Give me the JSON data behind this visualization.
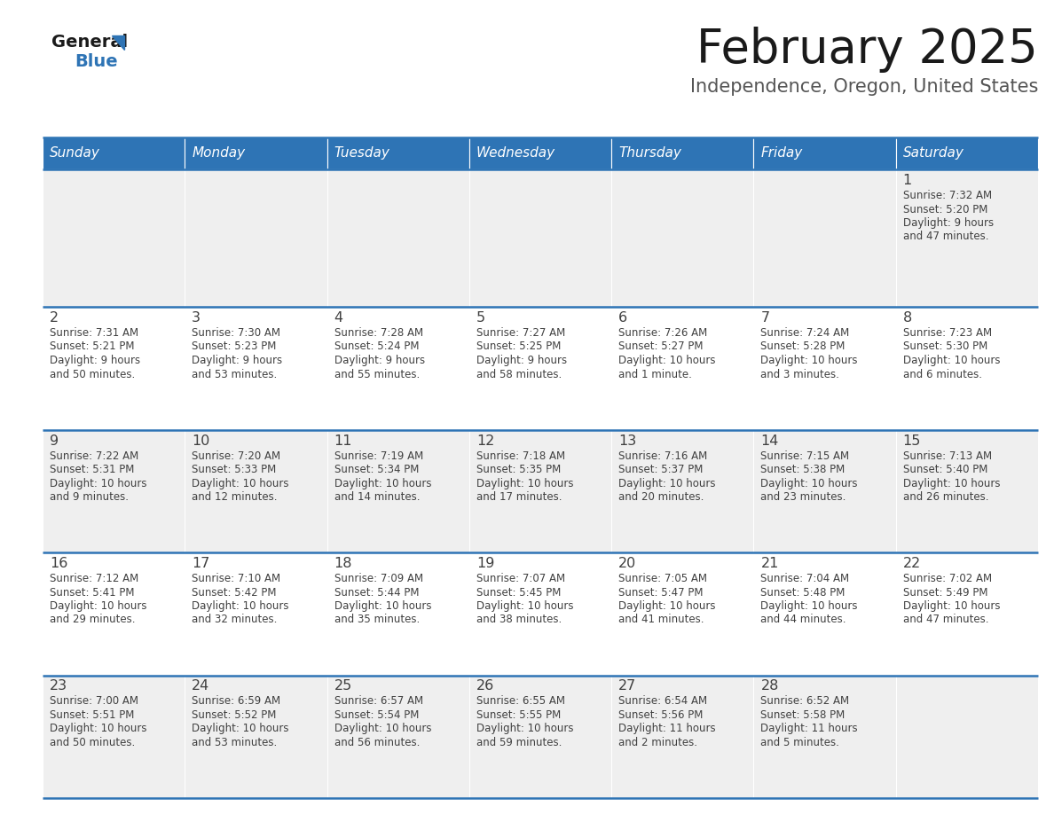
{
  "title": "February 2025",
  "subtitle": "Independence, Oregon, United States",
  "header_color": "#2e74b5",
  "header_text_color": "#ffffff",
  "cell_bg_odd": "#efefef",
  "cell_bg_even": "#ffffff",
  "border_color": "#2e74b5",
  "title_color": "#1a1a1a",
  "subtitle_color": "#555555",
  "day_number_color": "#404040",
  "cell_text_color": "#404040",
  "days_of_week": [
    "Sunday",
    "Monday",
    "Tuesday",
    "Wednesday",
    "Thursday",
    "Friday",
    "Saturday"
  ],
  "weeks": [
    [
      {
        "day": "",
        "sunrise": "",
        "sunset": "",
        "daylight": ""
      },
      {
        "day": "",
        "sunrise": "",
        "sunset": "",
        "daylight": ""
      },
      {
        "day": "",
        "sunrise": "",
        "sunset": "",
        "daylight": ""
      },
      {
        "day": "",
        "sunrise": "",
        "sunset": "",
        "daylight": ""
      },
      {
        "day": "",
        "sunrise": "",
        "sunset": "",
        "daylight": ""
      },
      {
        "day": "",
        "sunrise": "",
        "sunset": "",
        "daylight": ""
      },
      {
        "day": "1",
        "sunrise": "7:32 AM",
        "sunset": "5:20 PM",
        "daylight": "9 hours\nand 47 minutes."
      }
    ],
    [
      {
        "day": "2",
        "sunrise": "7:31 AM",
        "sunset": "5:21 PM",
        "daylight": "9 hours\nand 50 minutes."
      },
      {
        "day": "3",
        "sunrise": "7:30 AM",
        "sunset": "5:23 PM",
        "daylight": "9 hours\nand 53 minutes."
      },
      {
        "day": "4",
        "sunrise": "7:28 AM",
        "sunset": "5:24 PM",
        "daylight": "9 hours\nand 55 minutes."
      },
      {
        "day": "5",
        "sunrise": "7:27 AM",
        "sunset": "5:25 PM",
        "daylight": "9 hours\nand 58 minutes."
      },
      {
        "day": "6",
        "sunrise": "7:26 AM",
        "sunset": "5:27 PM",
        "daylight": "10 hours\nand 1 minute."
      },
      {
        "day": "7",
        "sunrise": "7:24 AM",
        "sunset": "5:28 PM",
        "daylight": "10 hours\nand 3 minutes."
      },
      {
        "day": "8",
        "sunrise": "7:23 AM",
        "sunset": "5:30 PM",
        "daylight": "10 hours\nand 6 minutes."
      }
    ],
    [
      {
        "day": "9",
        "sunrise": "7:22 AM",
        "sunset": "5:31 PM",
        "daylight": "10 hours\nand 9 minutes."
      },
      {
        "day": "10",
        "sunrise": "7:20 AM",
        "sunset": "5:33 PM",
        "daylight": "10 hours\nand 12 minutes."
      },
      {
        "day": "11",
        "sunrise": "7:19 AM",
        "sunset": "5:34 PM",
        "daylight": "10 hours\nand 14 minutes."
      },
      {
        "day": "12",
        "sunrise": "7:18 AM",
        "sunset": "5:35 PM",
        "daylight": "10 hours\nand 17 minutes."
      },
      {
        "day": "13",
        "sunrise": "7:16 AM",
        "sunset": "5:37 PM",
        "daylight": "10 hours\nand 20 minutes."
      },
      {
        "day": "14",
        "sunrise": "7:15 AM",
        "sunset": "5:38 PM",
        "daylight": "10 hours\nand 23 minutes."
      },
      {
        "day": "15",
        "sunrise": "7:13 AM",
        "sunset": "5:40 PM",
        "daylight": "10 hours\nand 26 minutes."
      }
    ],
    [
      {
        "day": "16",
        "sunrise": "7:12 AM",
        "sunset": "5:41 PM",
        "daylight": "10 hours\nand 29 minutes."
      },
      {
        "day": "17",
        "sunrise": "7:10 AM",
        "sunset": "5:42 PM",
        "daylight": "10 hours\nand 32 minutes."
      },
      {
        "day": "18",
        "sunrise": "7:09 AM",
        "sunset": "5:44 PM",
        "daylight": "10 hours\nand 35 minutes."
      },
      {
        "day": "19",
        "sunrise": "7:07 AM",
        "sunset": "5:45 PM",
        "daylight": "10 hours\nand 38 minutes."
      },
      {
        "day": "20",
        "sunrise": "7:05 AM",
        "sunset": "5:47 PM",
        "daylight": "10 hours\nand 41 minutes."
      },
      {
        "day": "21",
        "sunrise": "7:04 AM",
        "sunset": "5:48 PM",
        "daylight": "10 hours\nand 44 minutes."
      },
      {
        "day": "22",
        "sunrise": "7:02 AM",
        "sunset": "5:49 PM",
        "daylight": "10 hours\nand 47 minutes."
      }
    ],
    [
      {
        "day": "23",
        "sunrise": "7:00 AM",
        "sunset": "5:51 PM",
        "daylight": "10 hours\nand 50 minutes."
      },
      {
        "day": "24",
        "sunrise": "6:59 AM",
        "sunset": "5:52 PM",
        "daylight": "10 hours\nand 53 minutes."
      },
      {
        "day": "25",
        "sunrise": "6:57 AM",
        "sunset": "5:54 PM",
        "daylight": "10 hours\nand 56 minutes."
      },
      {
        "day": "26",
        "sunrise": "6:55 AM",
        "sunset": "5:55 PM",
        "daylight": "10 hours\nand 59 minutes."
      },
      {
        "day": "27",
        "sunrise": "6:54 AM",
        "sunset": "5:56 PM",
        "daylight": "11 hours\nand 2 minutes."
      },
      {
        "day": "28",
        "sunrise": "6:52 AM",
        "sunset": "5:58 PM",
        "daylight": "11 hours\nand 5 minutes."
      },
      {
        "day": "",
        "sunrise": "",
        "sunset": "",
        "daylight": ""
      }
    ]
  ]
}
